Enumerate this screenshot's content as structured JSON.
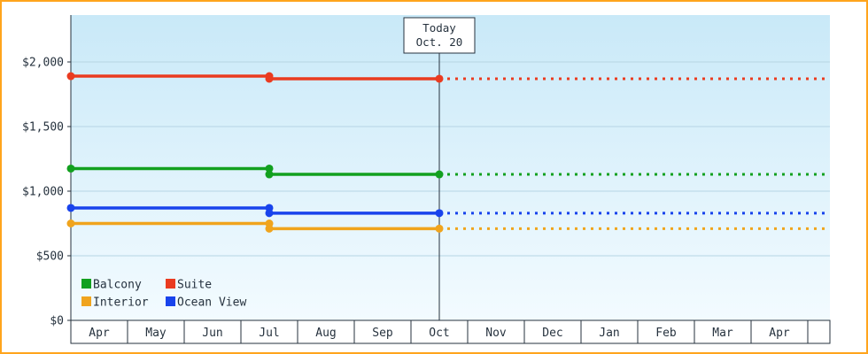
{
  "page": {
    "border_color": "#ffa41c",
    "background_color": "#ffffff"
  },
  "chart": {
    "plot": {
      "bg_gradient_top": "#c9e9f8",
      "bg_gradient_bottom": "#f3fbff",
      "gridline_color": "#b6d5e4",
      "axis_color": "#26323e",
      "text_color": "#26323e",
      "today_box_fill": "#ffffff",
      "month_band_fill": "#ffffff"
    },
    "legend": [
      {
        "series": "Balcony"
      },
      {
        "series": "Suite"
      },
      {
        "series": "Interior"
      },
      {
        "series": "Ocean View"
      }
    ]
  },
  "chart_data": {
    "type": "line",
    "x_categories": [
      "Apr",
      "May",
      "Jun",
      "Jul",
      "Aug",
      "Sep",
      "Oct",
      "Nov",
      "Dec",
      "Jan",
      "Feb",
      "Mar",
      "Apr"
    ],
    "y_tick_labels": [
      "$0",
      "$500",
      "$1,000",
      "$1,500",
      "$2,000"
    ],
    "y_tick_values": [
      0,
      500,
      1000,
      1500,
      2000
    ],
    "ylim": [
      0,
      2360
    ],
    "grid": "horizontal",
    "legend_position": "bottom-left",
    "today_marker": {
      "label": "Today",
      "date": "Oct. 20",
      "month": "Oct"
    },
    "series": [
      {
        "name": "Balcony",
        "color": "#12a01f",
        "history": [
          {
            "month": "Apr",
            "price": 1175
          },
          {
            "month": "Jul",
            "price": 1130
          },
          {
            "month": "Oct",
            "price": 1130
          }
        ],
        "projection": {
          "price": 1130,
          "style": "dotted",
          "to": "end-of-axis"
        }
      },
      {
        "name": "Suite",
        "color": "#ea3b20",
        "history": [
          {
            "month": "Apr",
            "price": 1890
          },
          {
            "month": "Jul",
            "price": 1870
          },
          {
            "month": "Oct",
            "price": 1870
          }
        ],
        "projection": {
          "price": 1870,
          "style": "dotted",
          "to": "end-of-axis"
        }
      },
      {
        "name": "Interior",
        "color": "#f0a41d",
        "history": [
          {
            "month": "Apr",
            "price": 750
          },
          {
            "month": "Jul",
            "price": 710
          },
          {
            "month": "Oct",
            "price": 710
          }
        ],
        "projection": {
          "price": 710,
          "style": "dotted",
          "to": "end-of-axis"
        }
      },
      {
        "name": "Ocean View",
        "color": "#1843ec",
        "history": [
          {
            "month": "Apr",
            "price": 870
          },
          {
            "month": "Jul",
            "price": 830
          },
          {
            "month": "Oct",
            "price": 830
          }
        ],
        "projection": {
          "price": 830,
          "style": "dotted",
          "to": "end-of-axis"
        }
      }
    ]
  }
}
